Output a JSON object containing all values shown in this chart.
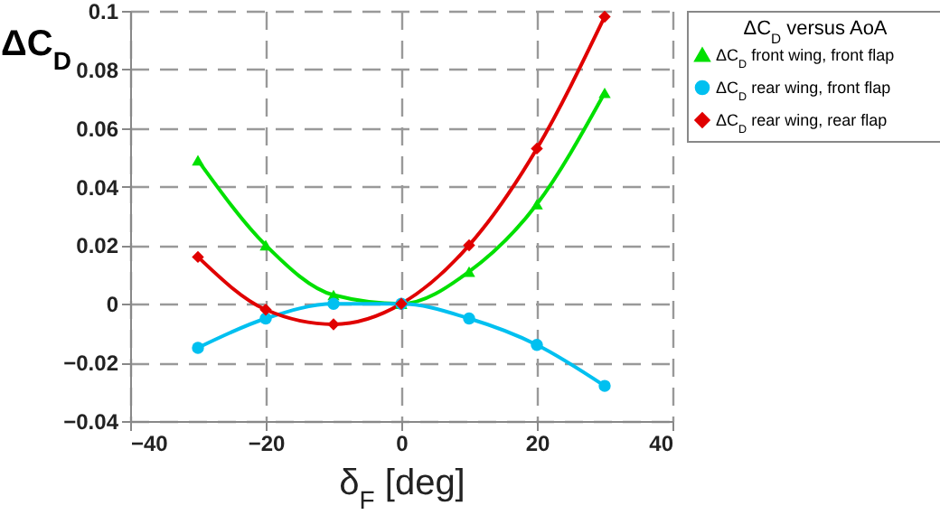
{
  "chart_data": {
    "type": "line",
    "xlabel": "δ$_{F}$ [deg]",
    "ylabel": "ΔC$_{D}$",
    "legend_title": "ΔC$_{D}$ versus AoA",
    "x": [
      -30,
      -20,
      -10,
      0,
      10,
      20,
      30
    ],
    "series": [
      {
        "name": "ΔC$_{D}$ front wing, front flap",
        "color": "#00e000",
        "marker": "triangle",
        "values": [
          0.049,
          0.02,
          0.003,
          0,
          0.011,
          0.034,
          0.072
        ]
      },
      {
        "name": "ΔC$_{D}$ rear wing, front flap",
        "color": "#00c0f0",
        "marker": "circle",
        "values": [
          -0.015,
          -0.005,
          0,
          0,
          -0.005,
          -0.014,
          -0.028
        ]
      },
      {
        "name": "ΔC$_{D}$ rear wing, rear flap",
        "color": "#e00000",
        "marker": "diamond",
        "values": [
          0.016,
          -0.002,
          -0.007,
          0,
          0.02,
          0.053,
          0.098
        ]
      }
    ],
    "xlim": [
      -40,
      40
    ],
    "xticks": [
      -40,
      -20,
      0,
      20,
      40
    ],
    "ylim": [
      -0.04,
      0.1
    ],
    "yticks": [
      -0.04,
      -0.02,
      0,
      0.02,
      0.04,
      0.06,
      0.08,
      0.1
    ],
    "grid": true,
    "legend": "top right",
    "line_style": "solid"
  }
}
